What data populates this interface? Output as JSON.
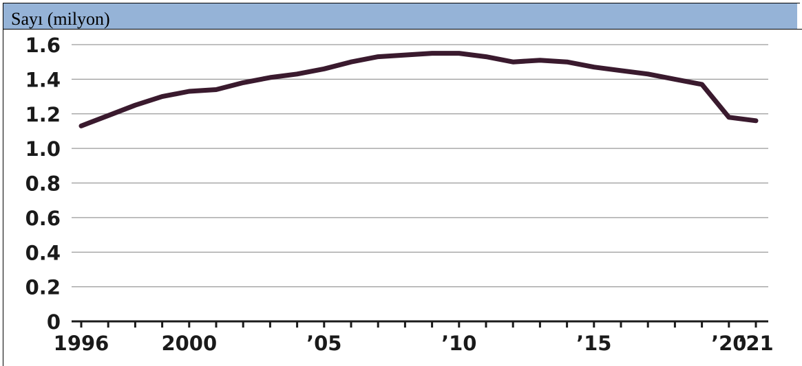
{
  "chart_data": {
    "type": "line",
    "title": "Sayı (milyon)",
    "xlabel": "",
    "ylabel": "",
    "ylim": [
      0,
      1.6
    ],
    "xlim": [
      1996,
      2021
    ],
    "grid": true,
    "color": "#3a1a2e",
    "yticks": [
      "0",
      "0.2",
      "0.4",
      "0.6",
      "0.8",
      "1.0",
      "1.2",
      "1.4",
      "1.6"
    ],
    "xticks": [
      {
        "value": 1996,
        "label": "1996"
      },
      {
        "value": 2000,
        "label": "2000"
      },
      {
        "value": 2005,
        "label": "’05"
      },
      {
        "value": 2010,
        "label": "’10"
      },
      {
        "value": 2015,
        "label": "’15"
      },
      {
        "value": 2020,
        "label": "’20"
      },
      {
        "value": 2021,
        "label": "’21"
      }
    ],
    "series": [
      {
        "x": [
          1996,
          1997,
          1998,
          1999,
          2000,
          2001,
          2002,
          2003,
          2004,
          2005,
          2006,
          2007,
          2008,
          2009,
          2010,
          2011,
          2012,
          2013,
          2014,
          2015,
          2016,
          2017,
          2018,
          2019,
          2020,
          2021
        ],
        "values": [
          1.13,
          1.19,
          1.25,
          1.3,
          1.33,
          1.34,
          1.38,
          1.41,
          1.43,
          1.46,
          1.5,
          1.53,
          1.54,
          1.55,
          1.55,
          1.53,
          1.5,
          1.51,
          1.5,
          1.47,
          1.45,
          1.43,
          1.4,
          1.37,
          1.18,
          1.16
        ]
      }
    ]
  }
}
